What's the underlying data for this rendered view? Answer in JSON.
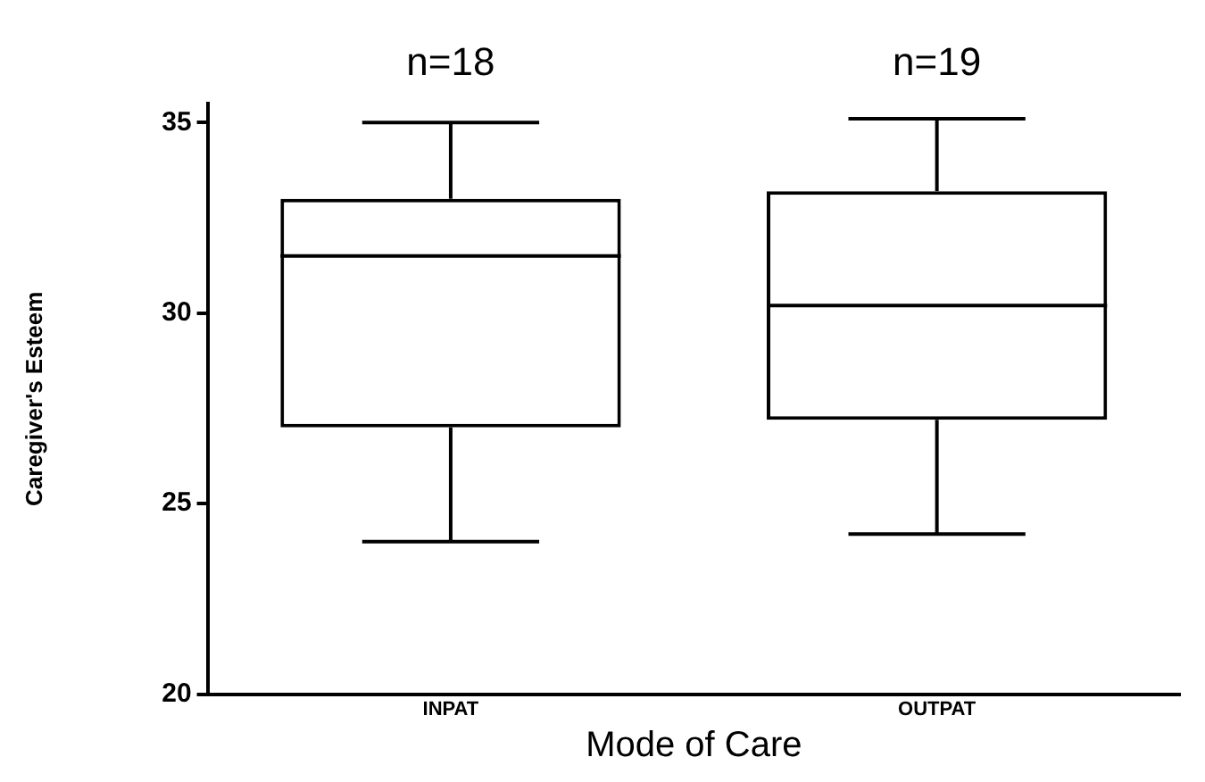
{
  "chart_data": {
    "type": "box",
    "categories": [
      "INPAT",
      "OUTPAT"
    ],
    "boxes": [
      {
        "low": 24,
        "q1": 27,
        "median": 31.5,
        "q3": 33,
        "high": 35
      },
      {
        "low": 24.2,
        "q1": 27.2,
        "median": 30.2,
        "q3": 33.2,
        "high": 35.1
      }
    ],
    "ylim": [
      20,
      35.5
    ],
    "yticks": [
      20,
      25,
      30,
      35
    ],
    "xlabel": "Mode of Care",
    "ylabel": "Caregiver's Esteem",
    "grid": false,
    "legend": false,
    "annotations": [
      "n=18",
      "n=19"
    ]
  }
}
